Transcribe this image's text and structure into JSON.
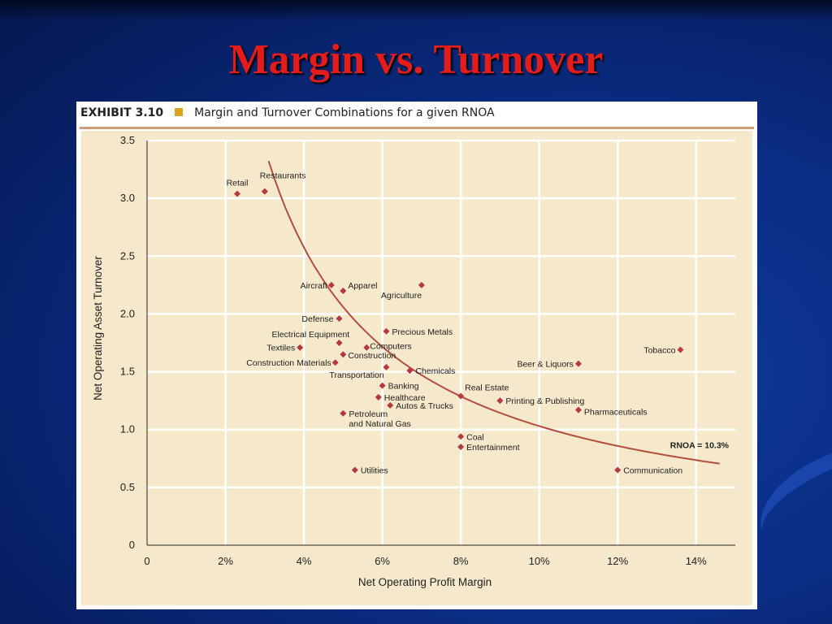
{
  "slide": {
    "title": "Margin vs. Turnover"
  },
  "exhibit": {
    "number": "EXHIBIT 3.10",
    "caption": "Margin and Turnover Combinations for a given RNOA"
  },
  "colors": {
    "background": "#0a2d84",
    "title": "#e51c1c",
    "plot_background": "#f6e8cb",
    "point": "#b5393f",
    "curve": "#b14f3f",
    "exhibit_square": "#d8a31a"
  },
  "chart_data": {
    "type": "scatter",
    "xlabel": "Net Operating Profit Margin",
    "ylabel": "Net Operating Asset Turnover",
    "xlim": [
      0,
      0.15
    ],
    "ylim": [
      0,
      3.5
    ],
    "x_ticks": [
      0,
      0.02,
      0.04,
      0.06,
      0.08,
      0.1,
      0.12,
      0.14
    ],
    "x_tick_labels": [
      "0",
      "2%",
      "4%",
      "6%",
      "8%",
      "10%",
      "12%",
      "14%"
    ],
    "y_ticks": [
      0,
      0.5,
      1.0,
      1.5,
      2.0,
      2.5,
      3.0,
      3.5
    ],
    "y_tick_labels": [
      "0",
      "0.5",
      "1.0",
      "1.5",
      "2.0",
      "2.5",
      "3.0",
      "3.5"
    ],
    "grid": true,
    "points": [
      {
        "label": "Retail",
        "x": 0.023,
        "y": 3.04
      },
      {
        "label": "Restaurants",
        "x": 0.03,
        "y": 3.06
      },
      {
        "label": "Aircraft",
        "x": 0.047,
        "y": 2.25
      },
      {
        "label": "Apparel",
        "x": 0.05,
        "y": 2.2
      },
      {
        "label": "Agriculture",
        "x": 0.07,
        "y": 2.25
      },
      {
        "label": "Defense",
        "x": 0.049,
        "y": 1.96
      },
      {
        "label": "Precious Metals",
        "x": 0.061,
        "y": 1.85
      },
      {
        "label": "Electrical Equipment",
        "x": 0.049,
        "y": 1.75
      },
      {
        "label": "Computers",
        "x": 0.056,
        "y": 1.71
      },
      {
        "label": "Textiles",
        "x": 0.039,
        "y": 1.71
      },
      {
        "label": "Construction",
        "x": 0.05,
        "y": 1.65
      },
      {
        "label": "Construction Materials",
        "x": 0.048,
        "y": 1.58
      },
      {
        "label": "Transportation",
        "x": 0.061,
        "y": 1.54
      },
      {
        "label": "Chemicals",
        "x": 0.067,
        "y": 1.51
      },
      {
        "label": "Tobacco",
        "x": 0.136,
        "y": 1.69
      },
      {
        "label": "Beer & Liquors",
        "x": 0.11,
        "y": 1.57
      },
      {
        "label": "Banking",
        "x": 0.06,
        "y": 1.38
      },
      {
        "label": "Real Estate",
        "x": 0.08,
        "y": 1.29
      },
      {
        "label": "Healthcare",
        "x": 0.059,
        "y": 1.28
      },
      {
        "label": "Printing & Publishing",
        "x": 0.09,
        "y": 1.25
      },
      {
        "label": "Autos & Trucks",
        "x": 0.062,
        "y": 1.21
      },
      {
        "label": "Pharmaceuticals",
        "x": 0.11,
        "y": 1.17
      },
      {
        "label": "Petroleum\nand Natural Gas",
        "x": 0.05,
        "y": 1.14
      },
      {
        "label": "Coal",
        "x": 0.08,
        "y": 0.94
      },
      {
        "label": "Entertainment",
        "x": 0.08,
        "y": 0.85
      },
      {
        "label": "Utilities",
        "x": 0.053,
        "y": 0.65
      },
      {
        "label": "Communication",
        "x": 0.12,
        "y": 0.65
      }
    ],
    "curve": {
      "label": "RNOA = 10.3%",
      "rnoa": 0.103,
      "x_start": 0.031,
      "x_end": 0.146
    }
  }
}
